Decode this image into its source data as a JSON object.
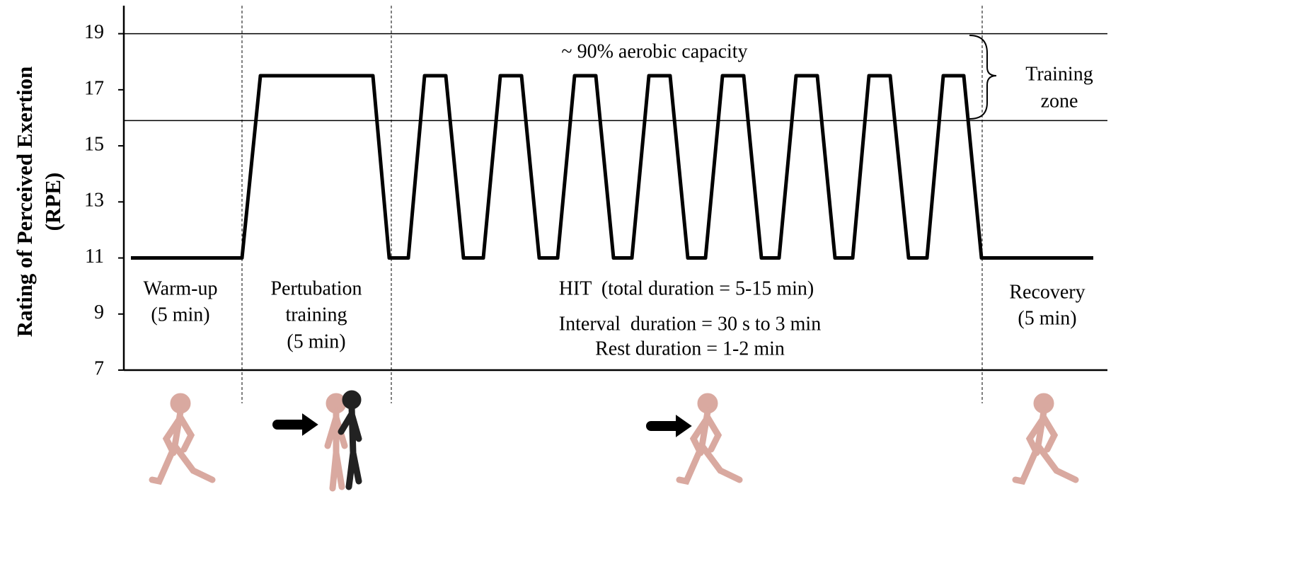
{
  "chart_data": {
    "type": "line",
    "y_label": [
      "Rating of Perceived Exertion",
      "(RPE)"
    ],
    "x": [
      185,
      342,
      368,
      527,
      550,
      577,
      600,
      630,
      655,
      683,
      707,
      737,
      762,
      788,
      812,
      842,
      867,
      893,
      917,
      947,
      972,
      997,
      1021,
      1051,
      1076,
      1101,
      1125,
      1155,
      1180,
      1205,
      1228,
      1258,
      1284,
      1310,
      1333,
      1362,
      1387,
      1545
    ],
    "series": [
      {
        "color": "#000000",
        "values": [
          11,
          11,
          17.5,
          17.5,
          11,
          11,
          17.5,
          17.5,
          11,
          11,
          17.5,
          17.5,
          11,
          11,
          17.5,
          17.5,
          11,
          11,
          17.5,
          17.5,
          11,
          11,
          17.5,
          17.5,
          11,
          11,
          17.5,
          17.5,
          11,
          11,
          17.5,
          17.5,
          11,
          11,
          17.5,
          17.5,
          11,
          11
        ]
      }
    ],
    "xlim": [
      175,
      1565
    ],
    "ylim": [
      7,
      20
    ],
    "yticks": [
      7,
      9,
      11,
      13,
      15,
      17,
      19
    ],
    "hlines": [
      19,
      15.9
    ],
    "vlines": [
      342,
      553,
      1388
    ],
    "annotations": [
      "~ 90% aerobic capacity",
      "Training",
      "zone",
      "Warm-up",
      "(5 min)",
      "Pertubation",
      "training",
      "(5 min)",
      "HIT  (total duration = 5-15 min)",
      "Interval  duration = 30 s to 3 min",
      "Rest duration = 1-2 min",
      "Recovery",
      "(5 min)"
    ]
  }
}
